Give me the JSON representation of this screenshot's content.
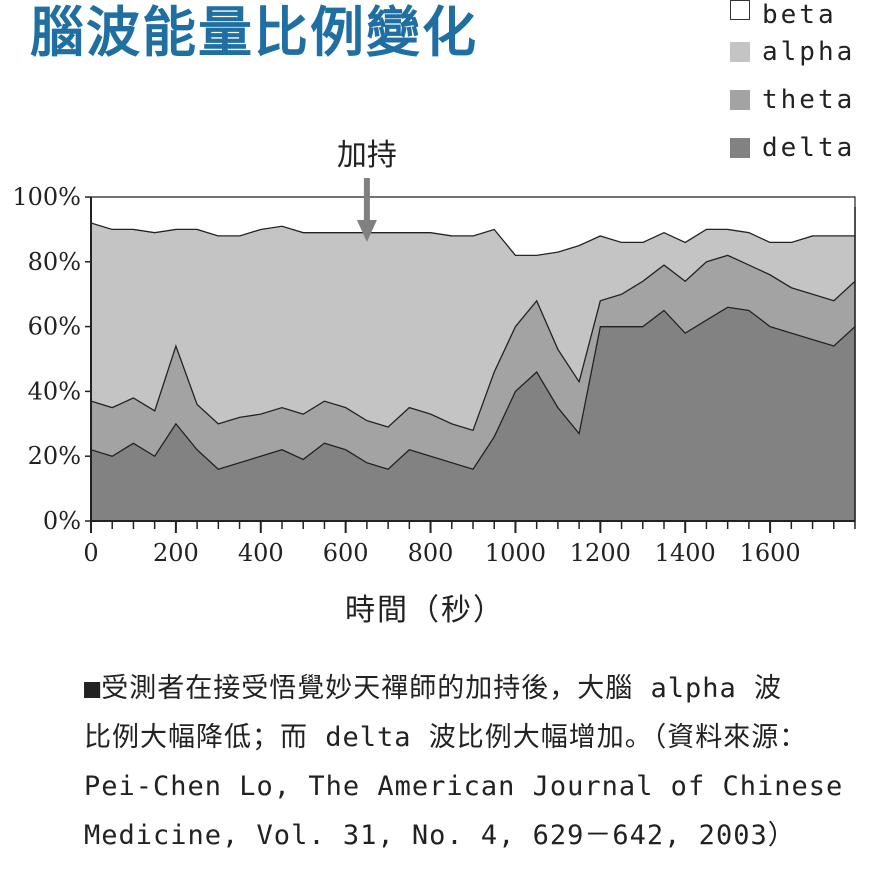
{
  "title": "腦波能量比例變化",
  "legend": [
    {
      "label": "beta",
      "color": "#ffffff"
    },
    {
      "label": "alpha",
      "color": "#c4c4c4"
    },
    {
      "label": "theta",
      "color": "#a3a3a3"
    },
    {
      "label": "delta",
      "color": "#828282"
    }
  ],
  "annotation": "加持",
  "xlabel": "時間（秒）",
  "caption": {
    "line1": "■受測者在接受悟覺妙天禪師的加持後，大腦 alpha 波",
    "line2": "比例大幅降低；而 delta 波比例大幅增加。（資料來源：",
    "line3": "Pei-Chen Lo, The American Journal of Chinese",
    "line4": "Medicine, Vol. 31, No. 4,  629－642, 2003）"
  },
  "chart_data": {
    "type": "area",
    "stacked": true,
    "xlim": [
      0,
      1800
    ],
    "ylim": [
      0,
      100
    ],
    "xticks": [
      0,
      200,
      400,
      600,
      800,
      1000,
      1200,
      1400,
      1600
    ],
    "xtick_labels": [
      "0",
      "200",
      "400",
      "600",
      "800",
      "1000",
      "1200",
      "1400",
      "1600"
    ],
    "yticks": [
      0,
      20,
      40,
      60,
      80,
      100
    ],
    "ytick_labels": [
      "0%",
      "20%",
      "40%",
      "60%",
      "80%",
      "100%"
    ],
    "annotation_x": 650,
    "x": [
      0,
      50,
      100,
      150,
      200,
      250,
      300,
      350,
      400,
      450,
      500,
      550,
      600,
      650,
      700,
      750,
      800,
      850,
      900,
      950,
      1000,
      1050,
      1100,
      1150,
      1200,
      1250,
      1300,
      1350,
      1400,
      1450,
      1500,
      1550,
      1600,
      1650,
      1700,
      1750,
      1800
    ],
    "series": [
      {
        "name": "delta",
        "color": "#828282",
        "values": [
          22,
          20,
          24,
          20,
          30,
          22,
          16,
          18,
          20,
          22,
          19,
          24,
          22,
          18,
          16,
          22,
          20,
          18,
          16,
          26,
          40,
          46,
          35,
          27,
          60,
          60,
          60,
          65,
          58,
          62,
          66,
          65,
          60,
          58,
          56,
          54,
          60
        ]
      },
      {
        "name": "theta",
        "color": "#a3a3a3",
        "values": [
          15,
          15,
          14,
          14,
          24,
          14,
          14,
          14,
          13,
          13,
          14,
          13,
          13,
          13,
          13,
          13,
          13,
          12,
          12,
          20,
          20,
          22,
          18,
          16,
          8,
          10,
          14,
          14,
          16,
          18,
          16,
          14,
          16,
          14,
          14,
          14,
          14
        ]
      },
      {
        "name": "alpha",
        "color": "#c4c4c4",
        "values": [
          55,
          55,
          52,
          55,
          36,
          54,
          58,
          56,
          57,
          56,
          56,
          52,
          54,
          58,
          60,
          54,
          56,
          58,
          60,
          44,
          22,
          14,
          30,
          42,
          20,
          16,
          12,
          10,
          12,
          10,
          8,
          10,
          10,
          14,
          18,
          20,
          14
        ]
      },
      {
        "name": "beta",
        "color": "#ffffff",
        "values": [
          8,
          10,
          10,
          11,
          10,
          10,
          12,
          12,
          10,
          9,
          11,
          11,
          11,
          11,
          11,
          11,
          11,
          12,
          12,
          10,
          18,
          18,
          17,
          15,
          12,
          14,
          14,
          11,
          14,
          10,
          10,
          11,
          14,
          14,
          12,
          12,
          12
        ]
      }
    ]
  }
}
